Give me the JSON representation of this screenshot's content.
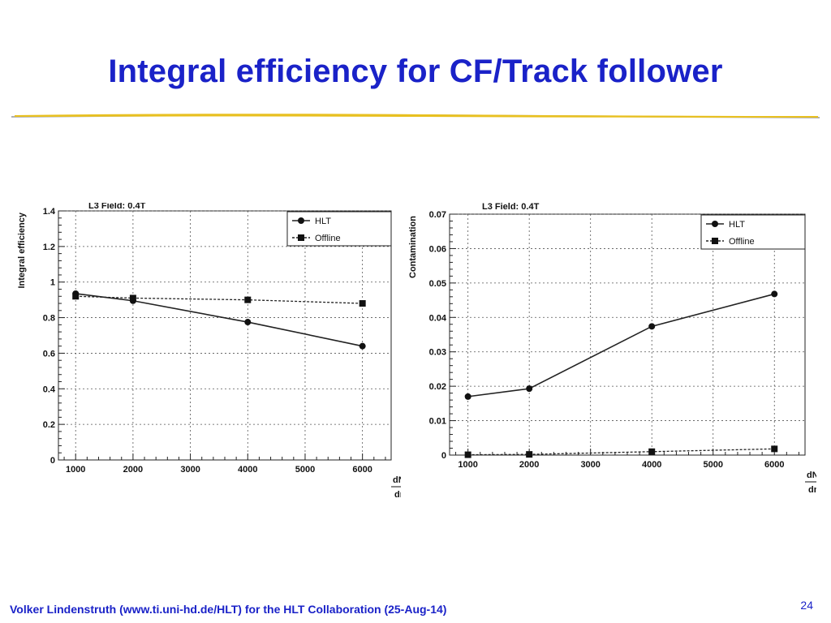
{
  "slide": {
    "title": "Integral efficiency for CF/Track follower",
    "footer": "Volker Lindenstruth (www.ti.uni-hd.de/HLT) for the HLT Collaboration (25-Aug-14)",
    "page_number": "24",
    "title_color": "#1a22c8",
    "rule_color": "#e8c020"
  },
  "chart_data": [
    {
      "type": "line",
      "title": "L3 Field: 0.4T",
      "ylabel": "Integral efficiency",
      "xlabel_num": "dN",
      "xlabel_sub": "ch",
      "xlabel_den": "dη",
      "xlim": [
        700,
        6500
      ],
      "ylim": [
        0,
        1.4
      ],
      "xticks": [
        1000,
        2000,
        3000,
        4000,
        5000,
        6000
      ],
      "xtick_labels": [
        "1000",
        "2000",
        "3000",
        "4000",
        "5000",
        "6000"
      ],
      "yticks": [
        0,
        0.2,
        0.4,
        0.6,
        0.8,
        1,
        1.2,
        1.4
      ],
      "ytick_labels": [
        "0",
        "0.2",
        "0.4",
        "0.6",
        "0.8",
        "1",
        "1.2",
        "1.4"
      ],
      "grid": true,
      "legend_position": "top-right",
      "series": [
        {
          "name": "HLT",
          "marker": "circle",
          "line": "solid",
          "x": [
            1000,
            2000,
            4000,
            6000
          ],
          "y": [
            0.935,
            0.895,
            0.775,
            0.64
          ]
        },
        {
          "name": "Offline",
          "marker": "square",
          "line": "dashed",
          "x": [
            1000,
            2000,
            4000,
            6000
          ],
          "y": [
            0.92,
            0.91,
            0.9,
            0.88
          ]
        }
      ]
    },
    {
      "type": "line",
      "title": "L3 Field: 0.4T",
      "ylabel": "Contamination",
      "xlabel_num": "dN",
      "xlabel_sub": "ch",
      "xlabel_den": "dη",
      "xlim": [
        700,
        6500
      ],
      "ylim": [
        0,
        0.07
      ],
      "xticks": [
        1000,
        2000,
        3000,
        4000,
        5000,
        6000
      ],
      "xtick_labels": [
        "1000",
        "2000",
        "3000",
        "4000",
        "5000",
        "6000"
      ],
      "yticks": [
        0,
        0.01,
        0.02,
        0.03,
        0.04,
        0.05,
        0.06,
        0.07
      ],
      "ytick_labels": [
        "0",
        "0.01",
        "0.02",
        "0.03",
        "0.04",
        "0.05",
        "0.06",
        "0.07"
      ],
      "grid": true,
      "legend_position": "top-right",
      "series": [
        {
          "name": "HLT",
          "marker": "circle",
          "line": "solid",
          "x": [
            1000,
            2000,
            4000,
            6000
          ],
          "y": [
            0.017,
            0.0193,
            0.0374,
            0.0468
          ]
        },
        {
          "name": "Offline",
          "marker": "square",
          "line": "dashed",
          "x": [
            1000,
            2000,
            4000,
            6000
          ],
          "y": [
            0.0001,
            0.0002,
            0.001,
            0.0018
          ]
        }
      ]
    }
  ]
}
